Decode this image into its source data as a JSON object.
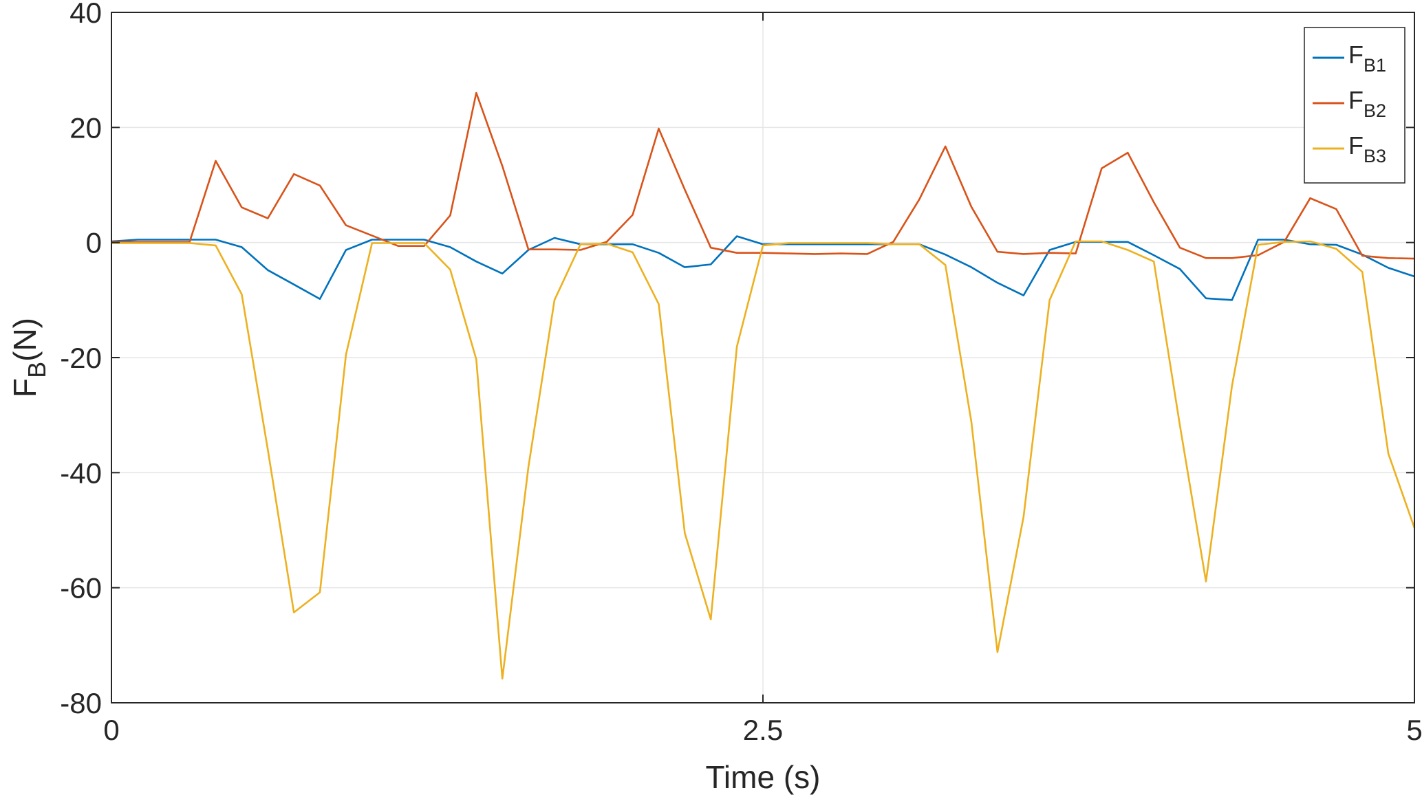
{
  "chart_data": {
    "type": "line",
    "xlabel": "Time (s)",
    "ylabel": {
      "main": "F",
      "sub": "B",
      "rest": "(N)"
    },
    "xlim": [
      0,
      5
    ],
    "ylim": [
      -80,
      40
    ],
    "xticks": [
      0,
      2.5,
      5
    ],
    "xtick_labels": [
      "0",
      "2.5",
      "5"
    ],
    "yticks": [
      -80,
      -60,
      -40,
      -20,
      0,
      20,
      40
    ],
    "ytick_labels": [
      "-80",
      "-60",
      "-40",
      "-20",
      "0",
      "20",
      "40"
    ],
    "grid": true,
    "legend_position": "top-right",
    "x": [
      0,
      0.1,
      0.2,
      0.3,
      0.4,
      0.5,
      0.6,
      0.7,
      0.8,
      0.9,
      1.0,
      1.1,
      1.2,
      1.3,
      1.4,
      1.5,
      1.6,
      1.7,
      1.8,
      1.9,
      2.0,
      2.1,
      2.2,
      2.3,
      2.4,
      2.5,
      2.6,
      2.7,
      2.8,
      2.9,
      3.0,
      3.1,
      3.2,
      3.3,
      3.4,
      3.5,
      3.6,
      3.7,
      3.8,
      3.9,
      4.0,
      4.1,
      4.2,
      4.3,
      4.4,
      4.5,
      4.6,
      4.7,
      4.8,
      4.9,
      5.0
    ],
    "series": [
      {
        "name": {
          "main": "F",
          "sub": "B1"
        },
        "color": "#0072BD",
        "values": [
          0.2,
          0.5,
          0.5,
          0.5,
          0.5,
          -0.8,
          -4.8,
          -7.3,
          -9.8,
          -1.3,
          0.5,
          0.5,
          0.5,
          -0.8,
          -3.3,
          -5.4,
          -1.3,
          0.8,
          -0.3,
          -0.3,
          -0.3,
          -1.8,
          -4.3,
          -3.8,
          1.1,
          -0.3,
          -0.3,
          -0.3,
          -0.3,
          -0.3,
          -0.3,
          -0.3,
          -2.1,
          -4.3,
          -7.0,
          -9.2,
          -1.3,
          0.1,
          0.1,
          0.1,
          -2.2,
          -4.6,
          -9.7,
          -10.0,
          0.5,
          0.5,
          -0.3,
          -0.4,
          -2.1,
          -4.4,
          -5.9
        ]
      },
      {
        "name": {
          "main": "F",
          "sub": "B2"
        },
        "color": "#D95319",
        "values": [
          0.1,
          0.1,
          0.1,
          0.1,
          14.2,
          6.1,
          4.2,
          11.9,
          9.9,
          3.0,
          1.2,
          -0.6,
          -0.6,
          4.7,
          26.0,
          13.3,
          -1.2,
          -1.2,
          -1.3,
          0.1,
          4.8,
          19.8,
          9.2,
          -0.9,
          -1.8,
          -1.8,
          -1.9,
          -2.0,
          -1.9,
          -2.0,
          0.1,
          7.5,
          16.7,
          6.2,
          -1.6,
          -2.0,
          -1.8,
          -1.9,
          12.9,
          15.6,
          7.0,
          -0.9,
          -2.7,
          -2.7,
          -2.2,
          0.1,
          7.7,
          5.8,
          -2.3,
          -2.7,
          -2.8
        ]
      },
      {
        "name": {
          "main": "F",
          "sub": "B3"
        },
        "color": "#EDB120",
        "values": [
          -0.1,
          -0.1,
          -0.1,
          -0.1,
          -0.5,
          -9.0,
          -36.0,
          -64.3,
          -60.8,
          -19.5,
          -0.1,
          -0.1,
          -0.1,
          -4.7,
          -20.3,
          -75.8,
          -39.0,
          -10.0,
          -0.3,
          -0.2,
          -1.7,
          -10.7,
          -50.5,
          -65.5,
          -18.1,
          -0.5,
          -0.1,
          -0.1,
          -0.1,
          -0.1,
          -0.3,
          -0.3,
          -3.9,
          -31.2,
          -71.2,
          -47.7,
          -10.0,
          0.2,
          0.2,
          -1.3,
          -3.3,
          -31.8,
          -58.9,
          -24.9,
          -0.4,
          0.1,
          0.2,
          -1.1,
          -5.1,
          -36.7,
          -49.6
        ]
      }
    ]
  }
}
